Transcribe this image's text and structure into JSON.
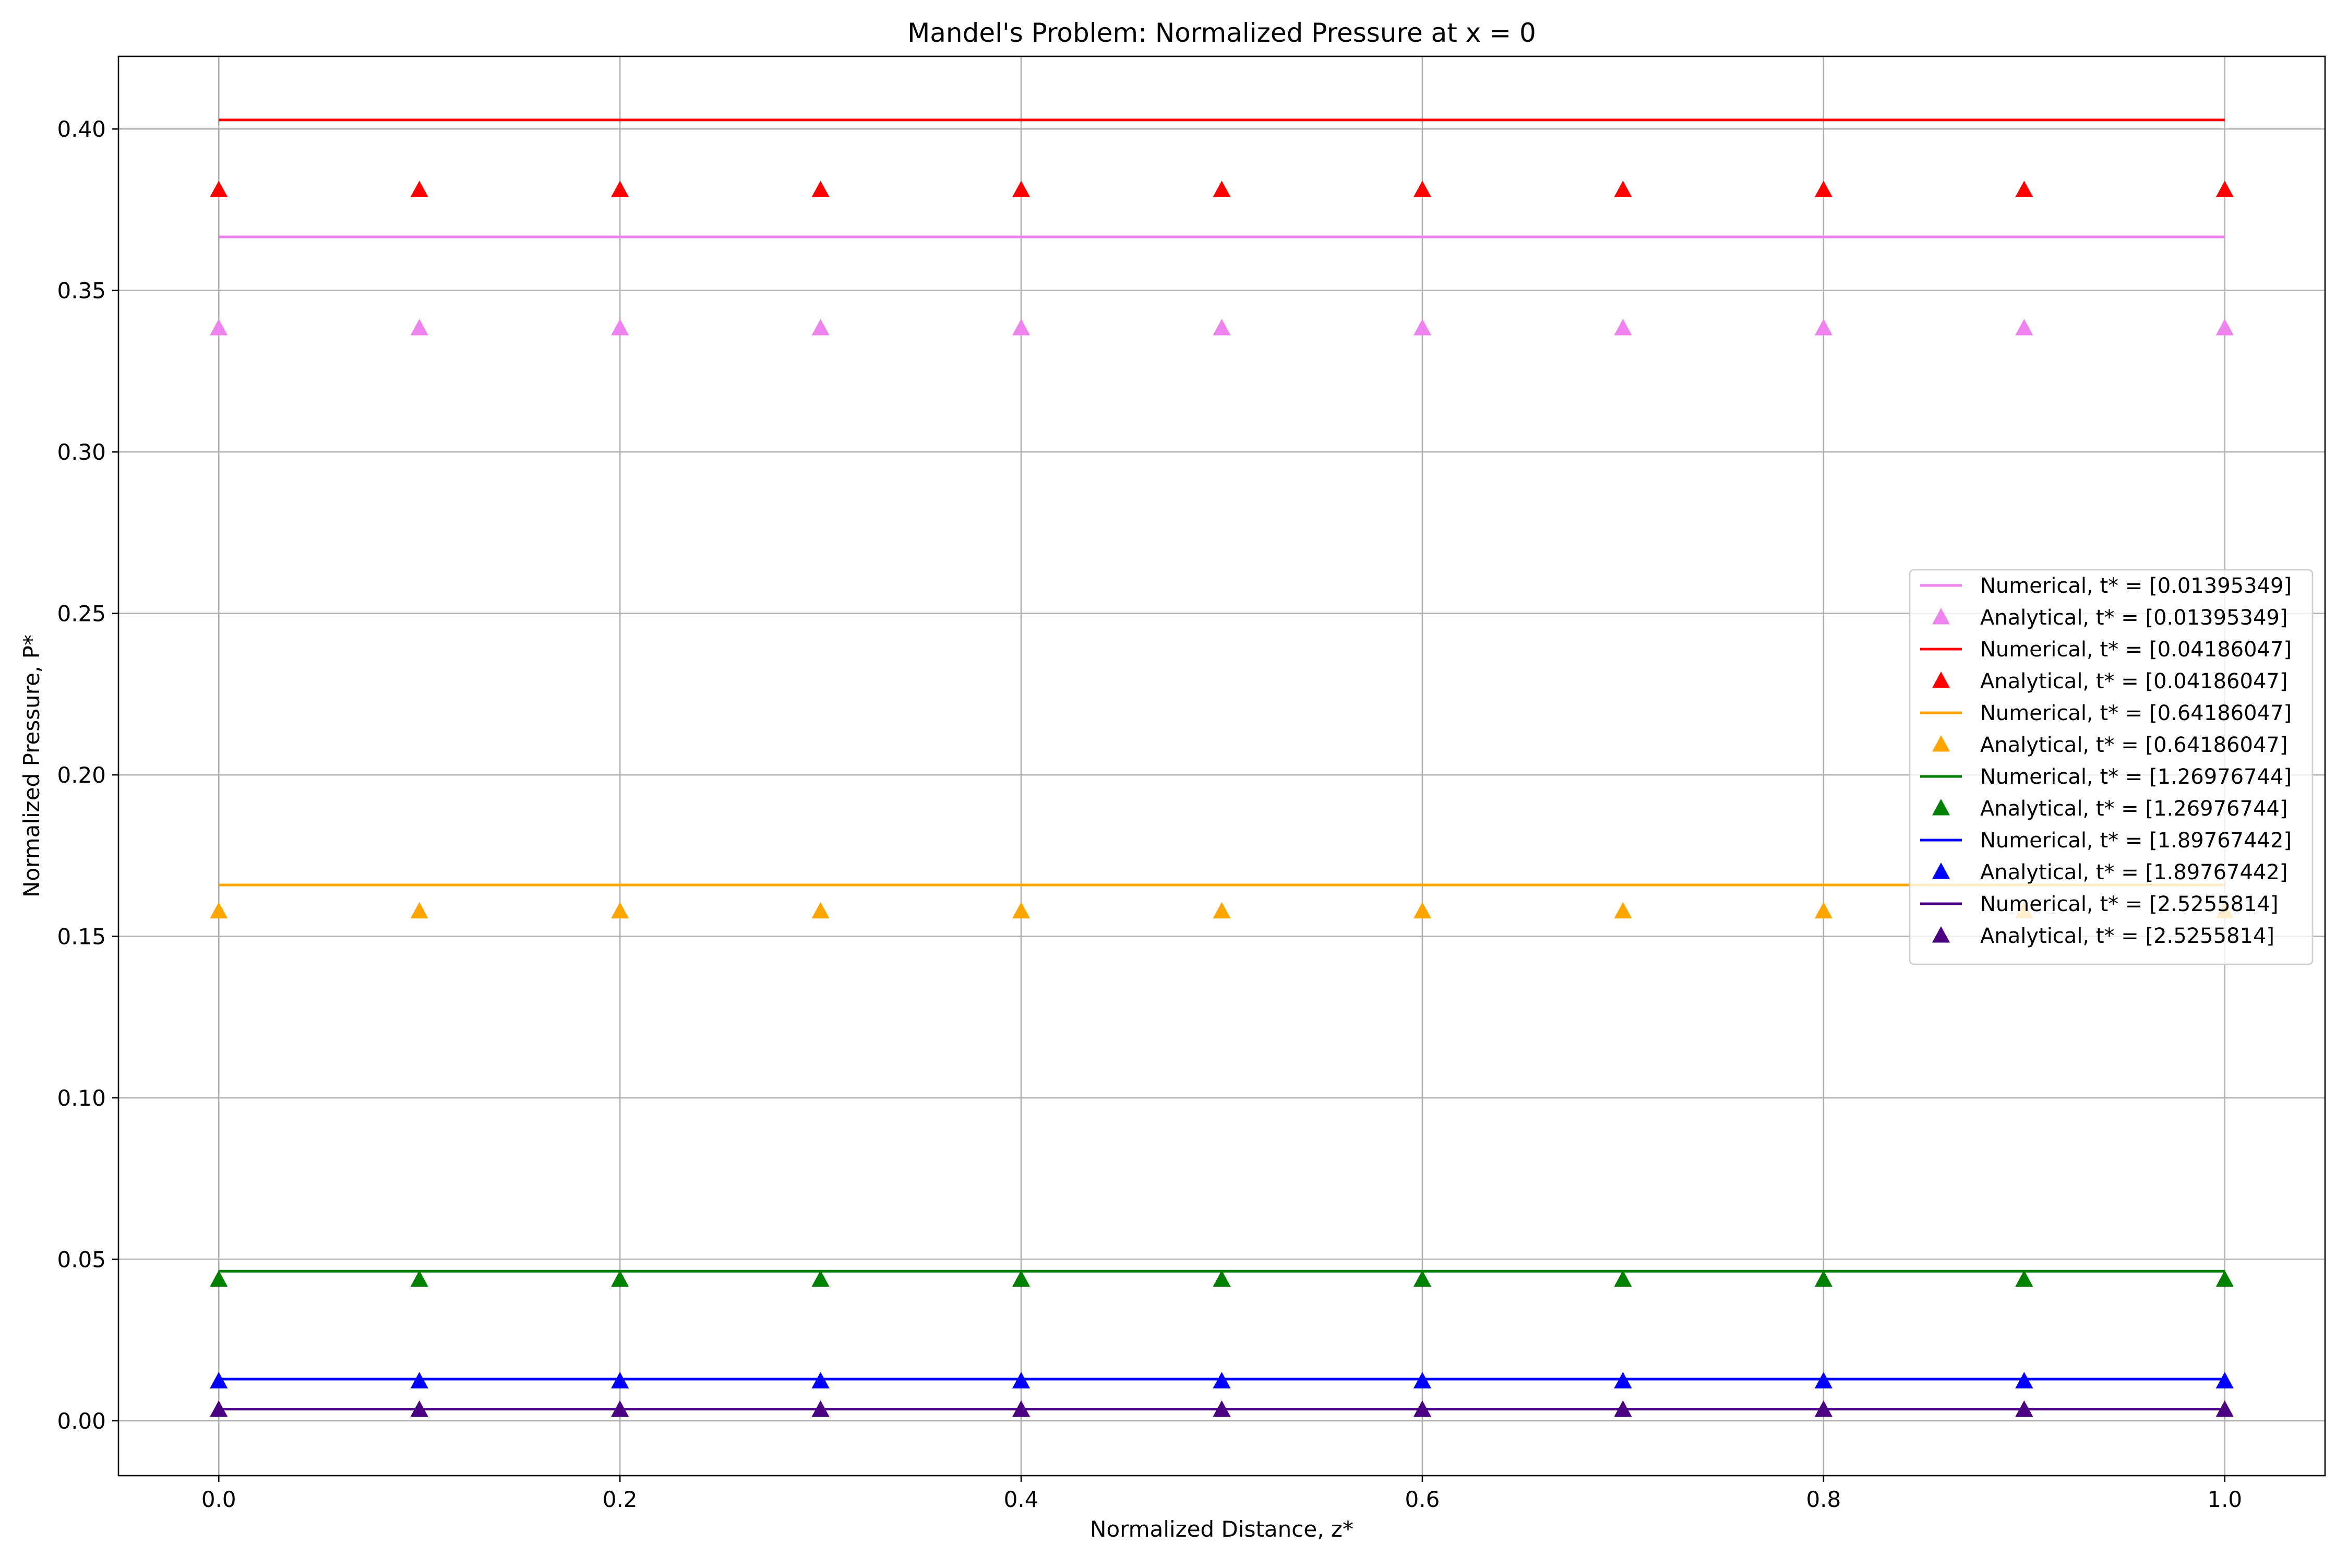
{
  "chart_data": {
    "type": "line",
    "title": "Mandel's Problem: Normalized Pressure at x = 0",
    "xlabel": "Normalized Distance, z*",
    "ylabel": "Normalized Pressure, P*",
    "xlim": [
      -0.05,
      1.05
    ],
    "ylim": [
      -0.017,
      0.4225
    ],
    "xticks": [
      0.0,
      0.2,
      0.4,
      0.6,
      0.8,
      1.0
    ],
    "xtick_labels": [
      "0.0",
      "0.2",
      "0.4",
      "0.6",
      "0.8",
      "1.0"
    ],
    "yticks": [
      0.0,
      0.05,
      0.1,
      0.15,
      0.2,
      0.25,
      0.3,
      0.35,
      0.4
    ],
    "ytick_labels": [
      "0.00",
      "0.05",
      "0.10",
      "0.15",
      "0.20",
      "0.25",
      "0.30",
      "0.35",
      "0.40"
    ],
    "grid": true,
    "legend_position": "center-right",
    "x": [
      0.0,
      0.1,
      0.2,
      0.3,
      0.4,
      0.5,
      0.6,
      0.7,
      0.8,
      0.9,
      1.0
    ],
    "series": [
      {
        "name": "Numerical, t* = [0.01395349]",
        "kind": "line",
        "color": "#ee82ee",
        "y": 0.3666
      },
      {
        "name": "Analytical, t* = [0.01395349]",
        "kind": "marker",
        "color": "#ee82ee",
        "y": 0.3383
      },
      {
        "name": "Numerical, t* = [0.04186047]",
        "kind": "line",
        "color": "#ff0000",
        "y": 0.4028
      },
      {
        "name": "Analytical, t* = [0.04186047]",
        "kind": "marker",
        "color": "#ff0000",
        "y": 0.3811
      },
      {
        "name": "Numerical, t* = [0.64186047]",
        "kind": "line",
        "color": "#ffa500",
        "y": 0.1659
      },
      {
        "name": "Analytical, t* = [0.64186047]",
        "kind": "marker",
        "color": "#ffa500",
        "y": 0.1577
      },
      {
        "name": "Numerical, t* = [1.26976744]",
        "kind": "line",
        "color": "#008000",
        "y": 0.0463
      },
      {
        "name": "Analytical, t* = [1.26976744]",
        "kind": "marker",
        "color": "#008000",
        "y": 0.0437
      },
      {
        "name": "Numerical, t* = [1.89767442]",
        "kind": "line",
        "color": "#0000ff",
        "y": 0.0129
      },
      {
        "name": "Analytical, t* = [1.89767442]",
        "kind": "marker",
        "color": "#0000ff",
        "y": 0.0122
      },
      {
        "name": "Numerical, t* = [2.5255814]",
        "kind": "line",
        "color": "#4b0082",
        "y": 0.0036
      },
      {
        "name": "Analytical, t* = [2.5255814]",
        "kind": "marker",
        "color": "#4b0082",
        "y": 0.0034
      }
    ]
  }
}
